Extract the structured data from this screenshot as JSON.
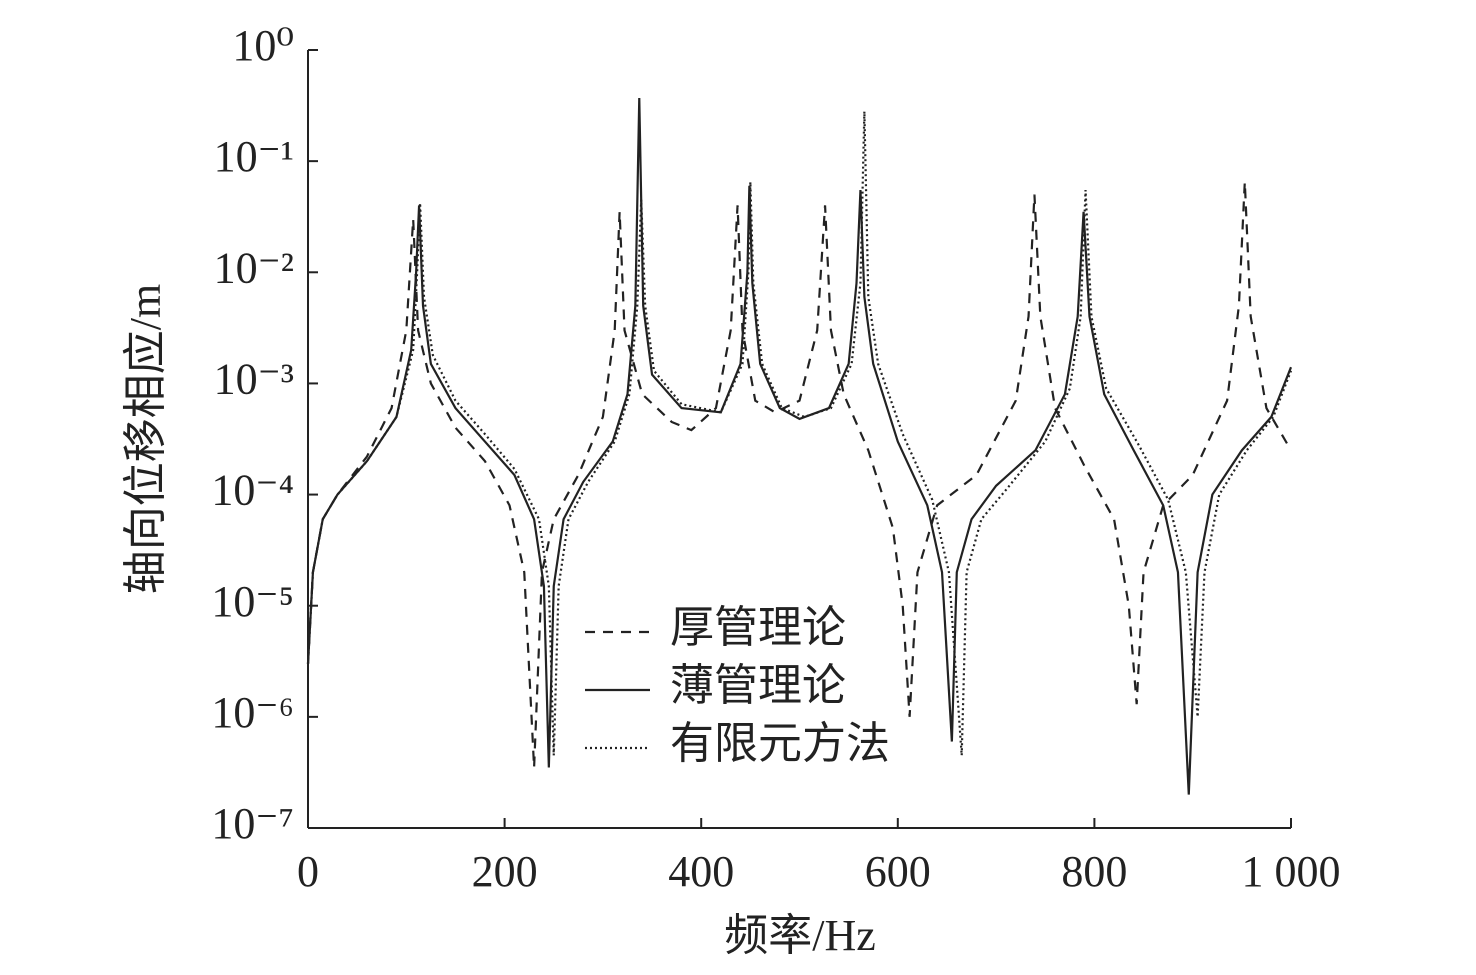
{
  "chart_data": {
    "type": "line",
    "x_label": "频率/Hz",
    "y_label": "轴向位移相应/m",
    "log_y": true,
    "legend": "lower center",
    "xlim": [
      0,
      1000
    ],
    "xticks": [
      0,
      200,
      400,
      600,
      800,
      {
        "value": 1000,
        "label": "1 000"
      }
    ],
    "ylim": [
      1e-07,
      1
    ],
    "yticks": [
      {
        "value": 1,
        "label": "10⁰"
      },
      {
        "value": 0.1,
        "label": "10⁻¹"
      },
      {
        "value": 0.01,
        "label": "10⁻²"
      },
      {
        "value": 0.001,
        "label": "10⁻³"
      },
      {
        "value": 0.0001,
        "label": "10⁻⁴"
      },
      {
        "value": 1e-05,
        "label": "10⁻⁵"
      },
      {
        "value": 1e-06,
        "label": "10⁻⁶"
      },
      {
        "value": 1e-07,
        "label": "10⁻⁷"
      }
    ],
    "series": [
      {
        "name": "厚管理论",
        "color": "#222222",
        "dash": "dashed",
        "x": [
          0,
          5,
          15,
          30,
          60,
          85,
          100,
          107,
          112,
          125,
          150,
          180,
          205,
          220,
          230,
          238,
          250,
          275,
          300,
          312,
          317,
          322,
          340,
          370,
          390,
          415,
          430,
          437,
          442,
          455,
          475,
          500,
          518,
          526,
          532,
          545,
          570,
          595,
          605,
          612,
          620,
          640,
          680,
          720,
          733,
          739,
          745,
          760,
          790,
          820,
          835,
          843,
          850,
          870,
          900,
          935,
          947,
          953,
          959,
          975,
          1000
        ],
        "values": [
          3e-06,
          2e-05,
          6e-05,
          0.0001,
          0.00022,
          0.0006,
          0.003,
          0.03,
          0.003,
          0.001,
          0.0004,
          0.0002,
          8e-05,
          2e-05,
          3.5e-07,
          2e-05,
          6e-05,
          0.00015,
          0.0005,
          0.003,
          0.035,
          0.003,
          0.0008,
          0.00045,
          0.00038,
          0.0006,
          0.003,
          0.04,
          0.003,
          0.0007,
          0.00055,
          0.0007,
          0.003,
          0.04,
          0.003,
          0.0008,
          0.00025,
          5e-05,
          1e-05,
          1e-06,
          2e-05,
          8e-05,
          0.00015,
          0.0007,
          0.004,
          0.05,
          0.004,
          0.0006,
          0.00018,
          6e-05,
          1e-05,
          1.3e-06,
          2e-05,
          8e-05,
          0.00015,
          0.0007,
          0.005,
          0.065,
          0.004,
          0.0006,
          0.00025
        ]
      },
      {
        "name": "薄管理论",
        "color": "#222222",
        "dash": "solid",
        "x": [
          0,
          5,
          15,
          30,
          60,
          90,
          105,
          110,
          113,
          117,
          125,
          150,
          180,
          210,
          230,
          240,
          245,
          250,
          260,
          280,
          310,
          325,
          333,
          337,
          341,
          350,
          380,
          420,
          440,
          447,
          449,
          452,
          460,
          480,
          500,
          530,
          550,
          558,
          562,
          566,
          575,
          600,
          630,
          645,
          655,
          660,
          675,
          700,
          740,
          770,
          783,
          789,
          795,
          810,
          840,
          870,
          885,
          896,
          905,
          920,
          950,
          980,
          1000
        ],
        "values": [
          3e-06,
          2e-05,
          6e-05,
          0.0001,
          0.0002,
          0.0005,
          0.002,
          0.01,
          0.04,
          0.005,
          0.0015,
          0.0006,
          0.0003,
          0.00015,
          6e-05,
          1.5e-05,
          3.5e-07,
          1.5e-05,
          6e-05,
          0.00013,
          0.0003,
          0.0008,
          0.005,
          0.37,
          0.005,
          0.0012,
          0.0006,
          0.00055,
          0.0015,
          0.01,
          0.06,
          0.008,
          0.0015,
          0.0006,
          0.00048,
          0.0006,
          0.0015,
          0.008,
          0.055,
          0.006,
          0.0015,
          0.0003,
          8e-05,
          2e-05,
          6e-07,
          2e-05,
          6e-05,
          0.00012,
          0.00025,
          0.0008,
          0.004,
          0.035,
          0.004,
          0.0008,
          0.00025,
          8e-05,
          2e-05,
          2e-07,
          2e-05,
          0.0001,
          0.00025,
          0.0005,
          0.0014
        ]
      },
      {
        "name": "有限元方法",
        "color": "#222222",
        "dash": "dotted",
        "x": [
          0,
          5,
          15,
          30,
          60,
          90,
          107,
          111,
          114,
          118,
          127,
          150,
          180,
          210,
          235,
          245,
          250,
          255,
          265,
          285,
          312,
          327,
          335,
          339,
          343,
          352,
          380,
          420,
          442,
          448,
          450,
          453,
          462,
          482,
          505,
          532,
          553,
          562,
          566,
          570,
          580,
          605,
          635,
          652,
          665,
          670,
          685,
          710,
          750,
          775,
          786,
          791,
          797,
          812,
          845,
          875,
          893,
          905,
          912,
          927,
          955,
          982,
          1000
        ],
        "values": [
          3e-06,
          2e-05,
          6e-05,
          0.0001,
          0.0002,
          0.0005,
          0.002,
          0.01,
          0.042,
          0.006,
          0.0018,
          0.0007,
          0.00035,
          0.00017,
          6e-05,
          1.5e-05,
          4.5e-07,
          1.5e-05,
          6e-05,
          0.00013,
          0.0003,
          0.0008,
          0.005,
          0.045,
          0.005,
          0.0013,
          0.00065,
          0.00055,
          0.0015,
          0.01,
          0.065,
          0.008,
          0.0015,
          0.0006,
          0.0005,
          0.0006,
          0.0015,
          0.008,
          0.28,
          0.006,
          0.0015,
          0.00035,
          9e-05,
          2e-05,
          4.5e-07,
          2e-05,
          6e-05,
          0.00011,
          0.0003,
          0.0009,
          0.004,
          0.055,
          0.004,
          0.0009,
          0.00028,
          9e-05,
          2e-05,
          1e-06,
          2e-05,
          0.0001,
          0.00025,
          0.0005,
          0.0013
        ]
      }
    ]
  }
}
